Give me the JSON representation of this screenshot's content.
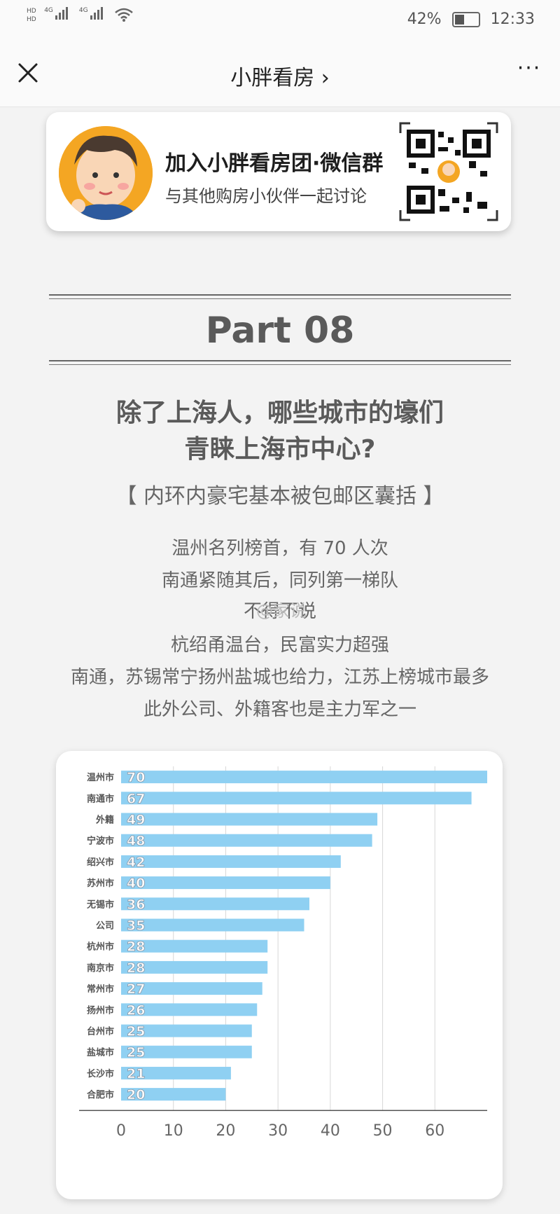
{
  "status_bar": {
    "network_left_1": "HD",
    "network_left_2": "HD",
    "signal_1": "4G",
    "signal_2": "4G",
    "battery_percent": "42%",
    "time": "12:33"
  },
  "nav": {
    "title": "小胖看房",
    "chevron": "›",
    "more": "···"
  },
  "banner": {
    "title": "加入小胖看房团·微信群",
    "subtitle": "与其他购房小伙伴一起讨论"
  },
  "section": {
    "part_label": "Part 08",
    "headline_line1": "除了上海人，哪些城市的壕们",
    "headline_line2": "青睐上海市中心?",
    "subhead": "【 内环内豪宅基本被包邮区囊括 】",
    "paragraphs": [
      "温州名列榜首，有 70 人次",
      "南通紧随其后，同列第一梯队",
      "不得不说",
      "杭绍甬温台，民富实力超强",
      "南通，苏锡常宁扬州盐城也给力，江苏上榜城市最多",
      "此外公司、外籍客也是主力军之一"
    ],
    "watermark": "@家说"
  },
  "chart_data": {
    "type": "bar",
    "orientation": "horizontal",
    "categories": [
      "温州市",
      "南通市",
      "外籍",
      "宁波市",
      "绍兴市",
      "苏州市",
      "无锡市",
      "公司",
      "杭州市",
      "南京市",
      "常州市",
      "扬州市",
      "台州市",
      "盐城市",
      "长沙市",
      "合肥市"
    ],
    "values": [
      70,
      67,
      49,
      48,
      42,
      40,
      36,
      35,
      28,
      28,
      27,
      26,
      25,
      25,
      21,
      20
    ],
    "x_ticks": [
      "0",
      "10",
      "20",
      "30",
      "40",
      "50",
      "60"
    ],
    "xlim": [
      0,
      70
    ],
    "grid": "vertical",
    "bar_color": "#8fd0f2",
    "label_color": "#ffffff",
    "label_shadow": "#8a96a5"
  }
}
